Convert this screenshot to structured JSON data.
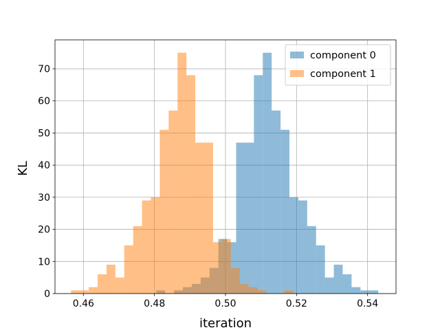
{
  "chart_data": {
    "type": "bar",
    "title": "",
    "xlabel": "iteration",
    "ylabel": "KL",
    "xlim": [
      0.452,
      0.548
    ],
    "ylim": [
      0,
      79
    ],
    "x_ticks": [
      "0.46",
      "0.48",
      "0.50",
      "0.52",
      "0.54"
    ],
    "y_ticks": [
      "0",
      "10",
      "20",
      "30",
      "40",
      "50",
      "60",
      "70"
    ],
    "grid": true,
    "legend_position": "top-right",
    "bin_width": 0.0025,
    "series": [
      {
        "name": "component 0",
        "color": "#1f77b4",
        "opacity": 0.5,
        "bins": [
          {
            "x": 0.4805,
            "count": 1
          },
          {
            "x": 0.4855,
            "count": 1
          },
          {
            "x": 0.488,
            "count": 2
          },
          {
            "x": 0.4905,
            "count": 3
          },
          {
            "x": 0.493,
            "count": 5
          },
          {
            "x": 0.4955,
            "count": 8
          },
          {
            "x": 0.498,
            "count": 17
          },
          {
            "x": 0.5005,
            "count": 16
          },
          {
            "x": 0.503,
            "count": 47
          },
          {
            "x": 0.5055,
            "count": 47
          },
          {
            "x": 0.508,
            "count": 68
          },
          {
            "x": 0.5105,
            "count": 75
          },
          {
            "x": 0.513,
            "count": 57
          },
          {
            "x": 0.5155,
            "count": 51
          },
          {
            "x": 0.518,
            "count": 30
          },
          {
            "x": 0.5205,
            "count": 29
          },
          {
            "x": 0.523,
            "count": 21
          },
          {
            "x": 0.5255,
            "count": 15
          },
          {
            "x": 0.528,
            "count": 5
          },
          {
            "x": 0.5305,
            "count": 9
          },
          {
            "x": 0.533,
            "count": 6
          },
          {
            "x": 0.5355,
            "count": 2
          },
          {
            "x": 0.538,
            "count": 1
          },
          {
            "x": 0.5405,
            "count": 1
          }
        ]
      },
      {
        "name": "component 1",
        "color": "#ff7f0e",
        "opacity": 0.5,
        "bins": [
          {
            "x": 0.4565,
            "count": 1
          },
          {
            "x": 0.459,
            "count": 1
          },
          {
            "x": 0.4615,
            "count": 2
          },
          {
            "x": 0.464,
            "count": 6
          },
          {
            "x": 0.4665,
            "count": 9
          },
          {
            "x": 0.469,
            "count": 5
          },
          {
            "x": 0.4715,
            "count": 15
          },
          {
            "x": 0.474,
            "count": 21
          },
          {
            "x": 0.4765,
            "count": 29
          },
          {
            "x": 0.479,
            "count": 30
          },
          {
            "x": 0.4815,
            "count": 51
          },
          {
            "x": 0.484,
            "count": 57
          },
          {
            "x": 0.4865,
            "count": 75
          },
          {
            "x": 0.489,
            "count": 68
          },
          {
            "x": 0.4915,
            "count": 47
          },
          {
            "x": 0.494,
            "count": 47
          },
          {
            "x": 0.4965,
            "count": 16
          },
          {
            "x": 0.499,
            "count": 17
          },
          {
            "x": 0.5015,
            "count": 8
          },
          {
            "x": 0.504,
            "count": 3
          },
          {
            "x": 0.5065,
            "count": 2
          },
          {
            "x": 0.509,
            "count": 1
          },
          {
            "x": 0.5165,
            "count": 1
          }
        ]
      }
    ]
  }
}
